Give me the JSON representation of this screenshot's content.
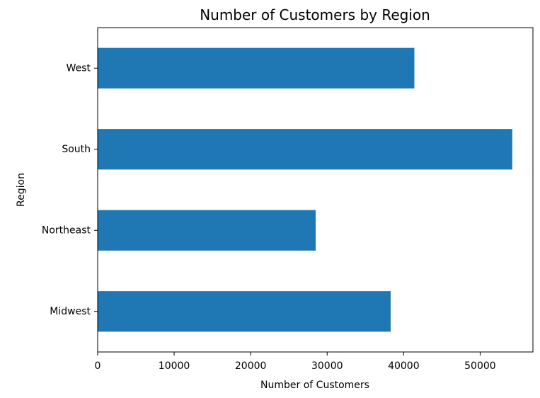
{
  "chart_data": {
    "type": "bar",
    "orientation": "horizontal",
    "title": "Number of Customers by Region",
    "xlabel": "Number of Customers",
    "ylabel": "Region",
    "categories": [
      "Midwest",
      "Northeast",
      "South",
      "West"
    ],
    "values": [
      38300,
      28500,
      54200,
      41400
    ],
    "xlim": [
      0,
      56900
    ],
    "xticks": [
      0,
      10000,
      20000,
      30000,
      40000,
      50000
    ],
    "grid": false,
    "legend": "none",
    "bar_color": "#1f77b4"
  }
}
